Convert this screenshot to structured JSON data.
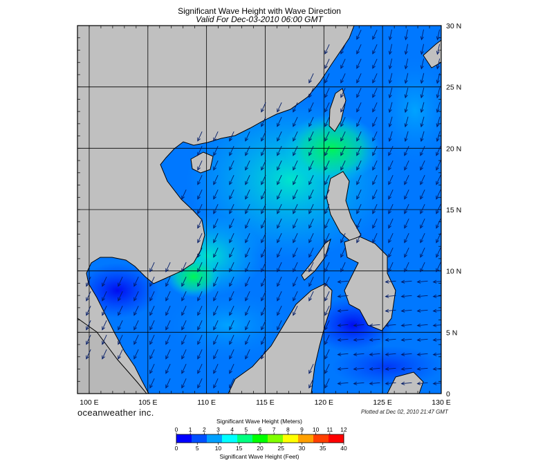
{
  "title": "Significant Wave Height with Wave Direction",
  "subtitle": "Valid For Dec-03-2010 06:00 GMT",
  "brand": "oceanweather inc.",
  "plotted": "Plotted at Dec 02, 2010 21:47 GMT",
  "map": {
    "lon_range": [
      99,
      130
    ],
    "lat_range": [
      0,
      30
    ],
    "lon_labels": [
      "100 E",
      "105 E",
      "110 E",
      "115 E",
      "120 E",
      "125 E",
      "130 E"
    ],
    "lon_label_values": [
      100,
      105,
      110,
      115,
      120,
      125,
      130
    ],
    "lat_labels": [
      "0",
      "5 N",
      "10 N",
      "15 N",
      "20 N",
      "25 N",
      "30 N"
    ],
    "lat_label_values": [
      0,
      5,
      10,
      15,
      20,
      25,
      30
    ],
    "land_color": "#c0c0c0",
    "grid_color": "#000000"
  },
  "legend": {
    "meters_title": "Significant Wave Height (Meters)",
    "feet_title": "Significant Wave Height (Feet)",
    "meters_ticks": [
      "0",
      "1",
      "2",
      "3",
      "4",
      "5",
      "6",
      "7",
      "8",
      "9",
      "10",
      "11",
      "12"
    ],
    "feet_ticks": [
      "0",
      "5",
      "10",
      "15",
      "20",
      "25",
      "30",
      "35",
      "40"
    ],
    "colors": [
      "#0000ff",
      "#0050ff",
      "#00a0ff",
      "#00ffff",
      "#00ff80",
      "#00ff00",
      "#80ff00",
      "#ffff00",
      "#ffa000",
      "#ff4000",
      "#ff0000"
    ]
  }
}
